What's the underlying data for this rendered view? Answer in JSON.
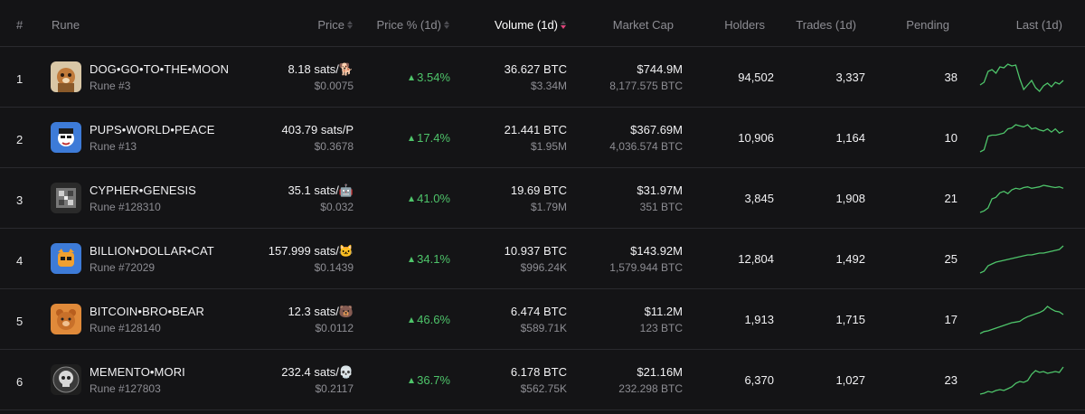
{
  "header": {
    "index": "#",
    "rune": "Rune",
    "price": "Price",
    "price_pct": "Price % (1d)",
    "volume": "Volume (1d)",
    "market_cap": "Market Cap",
    "holders": "Holders",
    "trades": "Trades (1d)",
    "pending": "Pending",
    "last": "Last (1d)"
  },
  "colors": {
    "positive": "#4ec46a",
    "sort_active": "#e0457b"
  },
  "rows": [
    {
      "index": "1",
      "name": "DOG•GO•TO•THE•MOON",
      "rune_no": "Rune #3",
      "price": "8.18 sats/🐕",
      "price_usd": "$0.0075",
      "pct": "3.54%",
      "volume": "36.627 BTC",
      "volume_usd": "$3.34M",
      "mcap": "$744.9M",
      "mcap_btc": "8,177.575 BTC",
      "holders": "94,502",
      "trades": "3,337",
      "pending": "38",
      "logo": "dog-logo-icon",
      "spark": [
        55,
        58,
        70,
        72,
        68,
        75,
        74,
        78,
        76,
        77,
        62,
        50,
        55,
        60,
        52,
        48,
        54,
        57,
        53,
        58,
        56,
        60
      ]
    },
    {
      "index": "2",
      "name": "PUPS•WORLD•PEACE",
      "rune_no": "Rune #13",
      "price": "403.79 sats/P",
      "price_usd": "$0.3678",
      "pct": "17.4%",
      "volume": "21.441 BTC",
      "volume_usd": "$1.95M",
      "mcap": "$367.69M",
      "mcap_btc": "4,036.574 BTC",
      "holders": "10,906",
      "trades": "1,164",
      "pending": "10",
      "logo": "pups-logo-icon",
      "spark": [
        40,
        42,
        55,
        56,
        56,
        57,
        58,
        62,
        63,
        66,
        65,
        64,
        66,
        62,
        63,
        61,
        60,
        62,
        59,
        62,
        58,
        60
      ]
    },
    {
      "index": "3",
      "name": "CYPHER•GENESIS",
      "rune_no": "Rune #128310",
      "price": "35.1 sats/🤖",
      "price_usd": "$0.032",
      "pct": "41.0%",
      "volume": "19.69 BTC",
      "volume_usd": "$1.79M",
      "mcap": "$31.97M",
      "mcap_btc": "351 BTC",
      "holders": "3,845",
      "trades": "1,908",
      "pending": "21",
      "logo": "cypher-logo-icon",
      "spark": [
        30,
        32,
        36,
        48,
        50,
        56,
        58,
        55,
        60,
        62,
        61,
        63,
        64,
        62,
        63,
        64,
        66,
        65,
        64,
        63,
        64,
        62
      ]
    },
    {
      "index": "4",
      "name": "BILLION•DOLLAR•CAT",
      "rune_no": "Rune #72029",
      "price": "157.999 sats/🐱",
      "price_usd": "$0.1439",
      "pct": "34.1%",
      "volume": "10.937 BTC",
      "volume_usd": "$996.24K",
      "mcap": "$143.92M",
      "mcap_btc": "1,579.944 BTC",
      "holders": "12,804",
      "trades": "1,492",
      "pending": "25",
      "logo": "cat-logo-icon",
      "spark": [
        38,
        40,
        46,
        48,
        50,
        51,
        52,
        53,
        54,
        55,
        56,
        57,
        58,
        58,
        59,
        60,
        60,
        61,
        62,
        63,
        64,
        68
      ]
    },
    {
      "index": "5",
      "name": "BITCOIN•BRO•BEAR",
      "rune_no": "Rune #128140",
      "price": "12.3 sats/🐻",
      "price_usd": "$0.0112",
      "pct": "46.6%",
      "volume": "6.474 BTC",
      "volume_usd": "$589.71K",
      "mcap": "$11.2M",
      "mcap_btc": "123 BTC",
      "holders": "1,913",
      "trades": "1,715",
      "pending": "17",
      "logo": "bear-logo-icon",
      "spark": [
        30,
        33,
        34,
        36,
        38,
        40,
        42,
        44,
        46,
        47,
        48,
        52,
        55,
        57,
        59,
        61,
        64,
        70,
        66,
        63,
        62,
        58
      ]
    },
    {
      "index": "6",
      "name": "MEMENTO•MORI",
      "rune_no": "Rune #127803",
      "price": "232.4 sats/💀",
      "price_usd": "$0.2117",
      "pct": "36.7%",
      "volume": "6.178 BTC",
      "volume_usd": "$562.75K",
      "mcap": "$21.16M",
      "mcap_btc": "232.298 BTC",
      "holders": "6,370",
      "trades": "1,027",
      "pending": "23",
      "logo": "skull-logo-icon",
      "spark": [
        30,
        31,
        33,
        32,
        34,
        35,
        34,
        36,
        38,
        42,
        44,
        43,
        45,
        52,
        56,
        54,
        55,
        53,
        54,
        55,
        54,
        60
      ]
    }
  ]
}
